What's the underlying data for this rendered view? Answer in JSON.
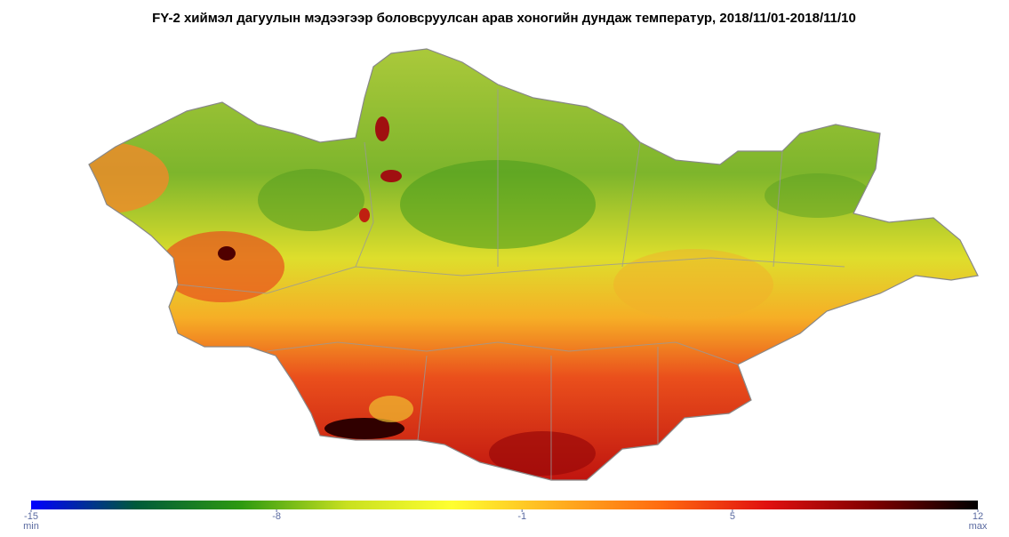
{
  "title": "FY-2 хиймэл дагуулын мэдээгээр боловсруулсан арав хоногийн дундаж температур, 2018/11/01-2018/11/10",
  "colorbar": {
    "lim": [
      -15,
      12
    ],
    "ticks": [
      -15,
      -8,
      -1,
      5,
      12
    ],
    "min_label": "min",
    "max_label": "max",
    "colors": [
      "#0000ff",
      "#005a3a",
      "#2e9a10",
      "#c8e020",
      "#ffff30",
      "#ffb020",
      "#ff6a10",
      "#e01010",
      "#800000",
      "#000000"
    ]
  }
}
